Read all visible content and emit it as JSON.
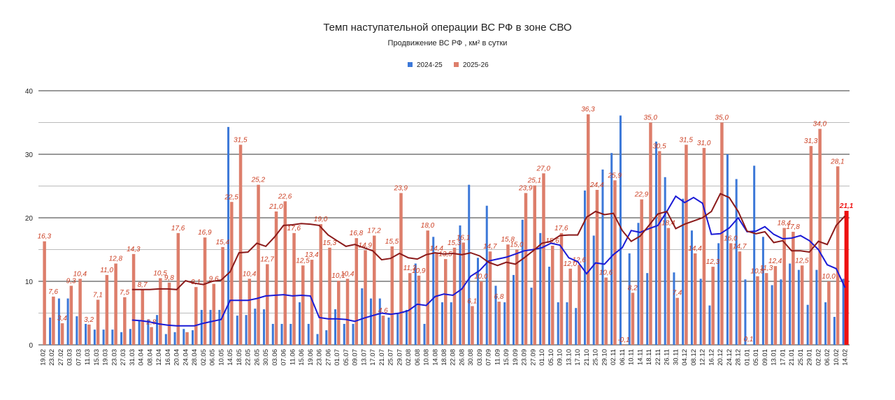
{
  "chart_data": {
    "type": "bar",
    "title": "Темп наступательной операции ВС РФ в зоне СВО",
    "subtitle": "Продвижение ВС РФ , км² в сутки",
    "categories": [
      "19.02",
      "23.02",
      "27.02",
      "03.03",
      "07.03",
      "11.03",
      "15.03",
      "19.03",
      "23.03",
      "27.03",
      "31.03",
      "04.04",
      "08.04",
      "12.04",
      "16.04",
      "20.04",
      "24.04",
      "28.04",
      "02.05",
      "06.05",
      "10.05",
      "14.05",
      "18.05",
      "22.05",
      "26.05",
      "30.05",
      "03.06",
      "07.06",
      "11.06",
      "15.06",
      "19.06",
      "23.06",
      "27.06",
      "01.07",
      "05.07",
      "09.07",
      "13.07",
      "17.07",
      "21.07",
      "25.07",
      "29.07",
      "02.08",
      "06.08",
      "10.08",
      "14.08",
      "18.08",
      "22.08",
      "26.08",
      "30.08",
      "03.09",
      "07.09",
      "11.09",
      "15.09",
      "19.09",
      "23.09",
      "27.09",
      "01.10",
      "05.10",
      "09.10",
      "13.10",
      "17.10",
      "21.10",
      "25.10",
      "29.10",
      "02.11",
      "06.11",
      "10.11",
      "14.11",
      "18.11",
      "22.11",
      "26.11",
      "30.11",
      "04.12",
      "08.12",
      "12.12",
      "16.12",
      "20.12",
      "24.12",
      "28.12",
      "01.01",
      "05.01",
      "09.01",
      "13.01",
      "17.01",
      "21.01",
      "25.01",
      "29.01",
      "02.02",
      "06.02",
      "10.02",
      "14.02"
    ],
    "series": [
      {
        "name": "2024-25",
        "color": "#3c78d8",
        "values": [
          null,
          4.3,
          7.3,
          7.3,
          4.5,
          3.3,
          2.4,
          2.4,
          2.4,
          2.0,
          2.5,
          3.9,
          4.0,
          4.7,
          1.7,
          2.0,
          2.5,
          2.3,
          5.5,
          5.5,
          5.5,
          34.3,
          4.6,
          4.7,
          5.7,
          5.6,
          3.3,
          3.3,
          3.3,
          6.7,
          3.3,
          1.7,
          2.3,
          5.6,
          3.3,
          3.3,
          8.9,
          7.3,
          7.3,
          4.3,
          5.0,
          5.5,
          12.8,
          3.3,
          17.0,
          6.7,
          6.7,
          18.8,
          25.2,
          13.7,
          21.9,
          9.3,
          6.7,
          11.0,
          19.7,
          9.0,
          17.6,
          12.3,
          6.7,
          6.7,
          5.8,
          24.3,
          17.2,
          27.6,
          30.2,
          36.1,
          14.4,
          19.2,
          11.3,
          32.0,
          26.4,
          11.4,
          23.0,
          18.0,
          10.4,
          6.2,
          16.0,
          30.0,
          26.1,
          10.3,
          28.2,
          17.0,
          9.4,
          10.3,
          12.8,
          11.8,
          6.3,
          11.8,
          6.7,
          4.4,
          10.4
        ]
      },
      {
        "name": "2025-26",
        "color": "#dd7e6b",
        "last_color": "#ee1111",
        "label_color": "#cc4125",
        "values": [
          16.3,
          7.6,
          3.4,
          9.3,
          10.4,
          3.2,
          7.1,
          11.0,
          12.8,
          7.5,
          14.3,
          8.7,
          2.8,
          10.5,
          9.8,
          17.6,
          2.0,
          9.1,
          16.9,
          9.6,
          15.4,
          22.5,
          31.5,
          10.4,
          25.2,
          12.7,
          21.0,
          22.6,
          17.6,
          12.5,
          13.4,
          19.0,
          15.3,
          10.1,
          10.4,
          16.8,
          14.9,
          17.2,
          4.6,
          15.5,
          23.9,
          11.3,
          10.9,
          18.0,
          14.4,
          13.5,
          15.3,
          16.1,
          6.1,
          10.0,
          14.7,
          6.8,
          15.8,
          15.0,
          23.9,
          25.1,
          27.0,
          15.6,
          17.6,
          12.0,
          12.6,
          36.3,
          24.4,
          10.6,
          25.9,
          -0.1,
          8.2,
          22.9,
          35.0,
          30.5,
          18.4,
          7.4,
          31.5,
          14.4,
          31.0,
          12.3,
          35.0,
          16.0,
          14.7,
          0.1,
          10.8,
          11.3,
          12.4,
          18.4,
          17.8,
          12.5,
          31.3,
          34.0,
          10.0,
          28.1,
          21.1
        ],
        "value_labels": [
          "16,3",
          "7,6",
          "3,4",
          "9,3",
          "10,4",
          "3,2",
          "7,1",
          "11,0",
          "12,8",
          "7,5",
          "14,3",
          "8,7",
          "2,8",
          "10,5",
          "9,8",
          "17,6",
          null,
          "9,1",
          "16,9",
          "9,6",
          "15,4",
          "22,5",
          "31,5",
          "10,4",
          "25,2",
          "12,7",
          "21,0",
          "22,6",
          "17,6",
          "12,5",
          "13,4",
          "19,0",
          "15,3",
          "10,1",
          "10,4",
          "16,8",
          "14,9",
          "17,2",
          "4,6",
          "15,5",
          "23,9",
          "11,3",
          "10,9",
          "18,0",
          "14,4",
          "13,5",
          "15,3",
          "16,1",
          "6,1",
          "10,0",
          "14,7",
          "6,8",
          "15,8",
          "15,0",
          "23,9",
          "25,1",
          "27,0",
          "15,6",
          "17,6",
          "12,0",
          "12,6",
          "36,3",
          "24,4",
          "10,6",
          "25,9",
          "-0,1",
          "8,2",
          "22,9",
          "35,0",
          "30,5",
          "18,4",
          "7,4",
          "31,5",
          "14,4",
          "31,0",
          "12,3",
          "35,0",
          "16,0",
          "14,7",
          "0,1",
          "10,8",
          "11,3",
          "12,4",
          "18,4",
          "17,8",
          "12,5",
          "31,3",
          "34,0",
          "10,0",
          "28,1",
          "21,1"
        ]
      }
    ],
    "lines": [
      {
        "color": "#1a1ad6",
        "values": [
          null,
          null,
          null,
          null,
          null,
          null,
          null,
          null,
          null,
          null,
          3.9,
          3.8,
          3.6,
          3.3,
          3.1,
          3.0,
          3.0,
          3.0,
          3.4,
          3.7,
          4.0,
          7.0,
          7.0,
          7.0,
          7.3,
          7.7,
          7.8,
          7.9,
          7.7,
          7.8,
          7.7,
          4.3,
          4.1,
          4.1,
          4.0,
          3.7,
          4.2,
          4.6,
          5.0,
          4.8,
          5.0,
          5.4,
          6.4,
          6.2,
          7.6,
          8.0,
          7.8,
          8.8,
          10.8,
          11.7,
          13.2,
          13.5,
          13.8,
          14.3,
          14.8,
          15.0,
          15.3,
          16.0,
          15.7,
          13.7,
          13.1,
          11.2,
          12.9,
          12.7,
          14.2,
          15.3,
          18.0,
          17.7,
          18.3,
          18.8,
          21.0,
          23.4,
          22.4,
          23.2,
          22.3,
          17.4,
          17.5,
          18.4,
          20.0,
          17.8,
          17.9,
          18.6,
          17.4,
          16.7,
          16.8,
          17.2,
          16.4,
          15.0,
          12.6,
          12.0,
          9.0
        ]
      },
      {
        "color": "#8b1a1a",
        "values": [
          null,
          null,
          null,
          null,
          null,
          null,
          null,
          null,
          null,
          null,
          8.7,
          8.7,
          8.7,
          8.8,
          8.8,
          8.7,
          10.1,
          9.7,
          9.5,
          10.0,
          10.2,
          11.5,
          14.5,
          14.6,
          16.0,
          15.5,
          17.0,
          18.8,
          18.9,
          19.1,
          19.0,
          18.8,
          17.3,
          16.4,
          15.5,
          15.8,
          15.3,
          14.8,
          13.4,
          13.6,
          14.4,
          13.7,
          13.5,
          14.2,
          14.5,
          14.3,
          14.4,
          14.2,
          14.5,
          14.0,
          13.0,
          12.5,
          13.0,
          12.7,
          13.7,
          14.8,
          16.0,
          16.3,
          17.2,
          17.3,
          17.3,
          20.1,
          21.0,
          20.5,
          20.7,
          18.0,
          16.3,
          17.1,
          18.8,
          20.6,
          21.0,
          18.3,
          19.0,
          19.5,
          20.0,
          21.0,
          23.8,
          23.2,
          21.0,
          17.9,
          17.5,
          17.8,
          16.1,
          16.4,
          14.8,
          14.8,
          14.6,
          16.3,
          15.8,
          18.8,
          20.3
        ]
      }
    ],
    "ylim": [
      0,
      40
    ],
    "yticks": [
      0,
      10,
      20,
      30,
      40
    ],
    "minor_yticks": [
      5,
      15,
      25,
      35
    ],
    "grid": true
  }
}
